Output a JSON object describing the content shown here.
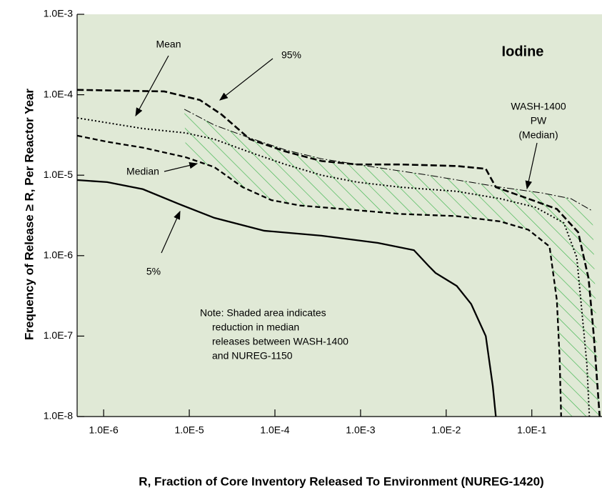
{
  "chart_data": {
    "type": "line",
    "xlabel": "R, Fraction of Core Inventory Released To Environment  (NUREG-1420)",
    "ylabel": "Frequency of Release ≥ R, Per Reactor Year",
    "xscale": "log",
    "yscale": "log",
    "xlim": [
      4.9e-07,
      0.66
    ],
    "ylim": [
      1e-08,
      0.001
    ],
    "xticks": [
      {
        "value": 1e-06,
        "label": "1.0E-6"
      },
      {
        "value": 1e-05,
        "label": "1.0E-5"
      },
      {
        "value": 0.0001,
        "label": "1.0E-4"
      },
      {
        "value": 0.001,
        "label": "1.0E-3"
      },
      {
        "value": 0.01,
        "label": "1.0E-2"
      },
      {
        "value": 0.1,
        "label": "1.0E-1"
      }
    ],
    "yticks": [
      {
        "value": 1e-08,
        "label": "1.0E-8"
      },
      {
        "value": 1e-07,
        "label": "1.0E-7"
      },
      {
        "value": 1e-06,
        "label": "1.0E-6"
      },
      {
        "value": 1e-05,
        "label": "1.0E-5"
      },
      {
        "value": 0.0001,
        "label": "1.0E-4"
      },
      {
        "value": 0.001,
        "label": "1.0E-3"
      }
    ],
    "background": "#e0e9d6",
    "hatch_color": "#3cb44b",
    "series": [
      {
        "color": "#000000",
        "style": "dashed-heavy",
        "x": [
          4.92e-07,
          5.1e-06,
          1.33e-05,
          2.37e-05,
          5.1e-05,
          0.000133,
          0.00035,
          0.00091,
          0.0029,
          0.0133,
          0.029,
          0.038,
          0.091,
          0.196,
          0.348,
          0.46,
          0.53,
          0.62
        ],
        "y": [
          0.000115,
          0.00011,
          8.6e-05,
          5.7e-05,
          2.8e-05,
          1.97e-05,
          1.5e-05,
          1.36e-05,
          1.36e-05,
          1.3e-05,
          1.2e-05,
          7.1e-06,
          5.1e-06,
          3.8e-06,
          1.95e-06,
          5.2e-07,
          1e-07,
          1e-08
        ]
      },
      {
        "color": "#000000",
        "style": "dotted",
        "x": [
          4.92e-07,
          2.87e-06,
          9.1e-06,
          1.96e-05,
          5.1e-05,
          0.000133,
          0.00035,
          0.00091,
          0.0029,
          0.0133,
          0.043,
          0.11,
          0.237,
          0.335,
          0.38,
          0.44,
          0.47
        ],
        "y": [
          5.15e-05,
          3.8e-05,
          3.35e-05,
          2.8e-05,
          1.93e-05,
          1.36e-05,
          1e-05,
          8.2e-06,
          7.1e-06,
          6.3e-06,
          5.1e-06,
          4e-06,
          2.55e-06,
          9.5e-07,
          2.3e-07,
          4.4e-08,
          1e-08
        ]
      },
      {
        "color": "#000000",
        "style": "dashed",
        "x": [
          4.92e-07,
          1.1e-06,
          2.87e-06,
          9.1e-06,
          1.96e-05,
          4.2e-05,
          9.1e-05,
          0.000196,
          0.00062,
          0.0029,
          0.0133,
          0.043,
          0.091,
          0.161,
          0.196,
          0.211,
          0.22
        ],
        "y": [
          3.1e-05,
          2.6e-05,
          2.2e-05,
          1.67e-05,
          1.26e-05,
          7.1e-06,
          4.9e-06,
          4.2e-06,
          3.8e-06,
          3.3e-06,
          3.1e-06,
          2.66e-06,
          2.1e-06,
          1.3e-06,
          2.8e-07,
          5.5e-08,
          1e-08
        ]
      },
      {
        "color": "#000000",
        "style": "solid",
        "x": [
          4.92e-07,
          1.1e-06,
          2.87e-06,
          7.5e-06,
          1.96e-05,
          7.5e-05,
          0.00035,
          0.0016,
          0.0042,
          0.0062,
          0.0075,
          0.0133,
          0.0196,
          0.029,
          0.035,
          0.038
        ],
        "y": [
          8.7e-06,
          8.2e-06,
          6.7e-06,
          4.4e-06,
          2.95e-06,
          2.04e-06,
          1.77e-06,
          1.44e-06,
          1.17e-06,
          7.5e-07,
          6.1e-07,
          4.2e-07,
          2.5e-07,
          1e-07,
          2.4e-08,
          1e-08
        ]
      },
      {
        "color": "#000000",
        "style": "dash-dot",
        "x": [
          8.75e-06,
          1.96e-05,
          5.1e-05,
          0.000133,
          0.00035,
          0.00091,
          0.0062,
          0.043,
          0.133,
          0.287,
          0.51
        ],
        "y": [
          6.6e-05,
          4.2e-05,
          2.9e-05,
          2.06e-05,
          1.6e-05,
          1.36e-05,
          1e-05,
          7.1e-06,
          6e-06,
          5.1e-06,
          3.6e-06
        ]
      }
    ],
    "annotations": [
      {
        "lines": [
          "Mean"
        ]
      },
      {
        "lines": [
          "95%"
        ]
      },
      {
        "lines": [
          "Median"
        ]
      },
      {
        "lines": [
          "5%"
        ]
      },
      {
        "lines": [
          "WASH-1400",
          "PW",
          "(Median)"
        ]
      },
      {
        "lines": [
          "Iodine"
        ]
      },
      {
        "lines": [
          "Note: Shaded area indicates",
          "reduction in median",
          "releases between WASH-1400",
          "and NUREG-1150"
        ]
      }
    ]
  }
}
